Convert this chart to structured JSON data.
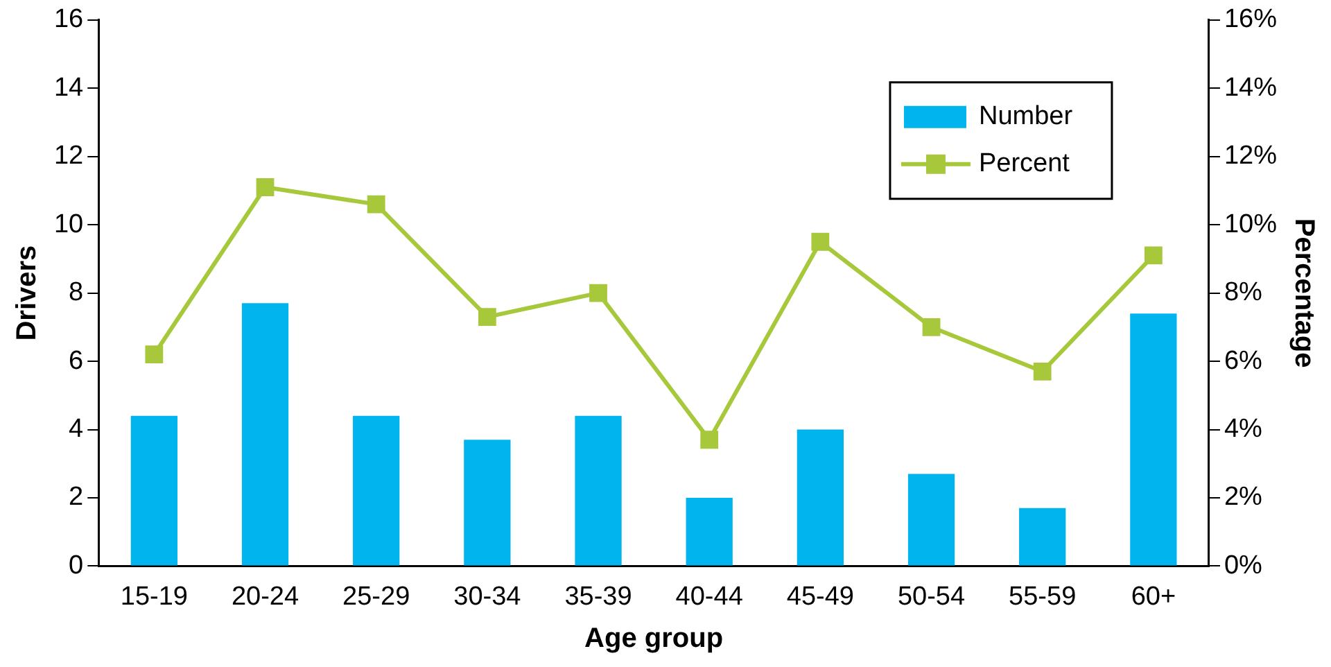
{
  "chart_data": {
    "type": "bar",
    "xlabel": "Age group",
    "ylabel": "Drivers",
    "y2label": "Percentage",
    "categories": [
      "15-19",
      "20-24",
      "25-29",
      "30-34",
      "35-39",
      "40-44",
      "45-49",
      "50-54",
      "55-59",
      "60+"
    ],
    "series": [
      {
        "name": "Number",
        "type": "bar",
        "color": "#00b4ee",
        "values": [
          4.4,
          7.7,
          4.4,
          3.7,
          4.4,
          2.0,
          4.0,
          2.7,
          1.7,
          7.4
        ]
      },
      {
        "name": "Percent",
        "type": "line",
        "axis": "y2",
        "color": "#a8c83c",
        "marker": "square",
        "values": [
          6.2,
          11.1,
          10.6,
          7.3,
          8.0,
          3.7,
          9.5,
          7.0,
          5.7,
          9.1
        ]
      }
    ],
    "ylim": [
      0,
      16
    ],
    "yticks": [
      0,
      2,
      4,
      6,
      8,
      10,
      12,
      14,
      16
    ],
    "y2lim": [
      0,
      16
    ],
    "y2ticks": [
      {
        "value": 0,
        "label": "0%"
      },
      {
        "value": 2,
        "label": "2%"
      },
      {
        "value": 4,
        "label": "4%"
      },
      {
        "value": 6,
        "label": "6%"
      },
      {
        "value": 8,
        "label": "8%"
      },
      {
        "value": 10,
        "label": "10%"
      },
      {
        "value": 12,
        "label": "12%"
      },
      {
        "value": 14,
        "label": "14%"
      },
      {
        "value": 16,
        "label": "16%"
      }
    ],
    "grid": false,
    "legend": "top right"
  }
}
